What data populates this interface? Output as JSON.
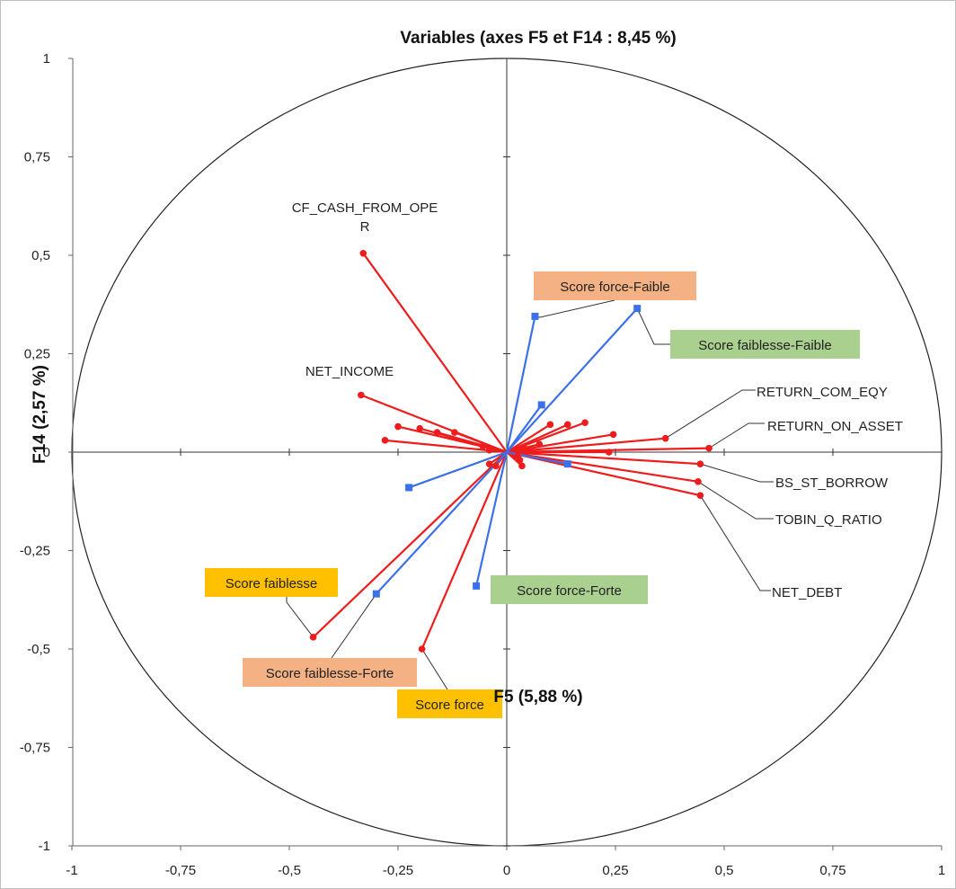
{
  "chart_data": {
    "type": "scatter",
    "title": "Variables (axes F5 et F14 : 8,45 %)",
    "xlabel": "F5 (5,88 %)",
    "ylabel": "F14 (2,57 %)",
    "xlim": [
      -1,
      1
    ],
    "ylim": [
      -1,
      1
    ],
    "x_ticks": [
      "-1",
      "-0,75",
      "-0,5",
      "-0,25",
      "0",
      "0,25",
      "0,5",
      "0,75",
      "1"
    ],
    "y_ticks": [
      "1",
      "0,75",
      "0,5",
      "0,25",
      "0",
      "-0,25",
      "-0,5",
      "-0,75",
      "-1"
    ],
    "correlation_circle": true,
    "colors": {
      "active": "#ee1c1c",
      "supplementary": "#3b70e8",
      "tag_orange": "#f4b183",
      "tag_gold": "#ffc000",
      "tag_green": "#a9d08e"
    },
    "series": [
      {
        "name": "",
        "color": "#ee1c1c",
        "marker": "circle",
        "points": [
          {
            "x": -0.33,
            "y": 0.505
          },
          {
            "x": -0.335,
            "y": 0.145
          },
          {
            "x": -0.25,
            "y": 0.065
          },
          {
            "x": -0.2,
            "y": 0.06
          },
          {
            "x": -0.16,
            "y": 0.05
          },
          {
            "x": -0.12,
            "y": 0.05
          },
          {
            "x": -0.055,
            "y": 0.015
          },
          {
            "x": -0.04,
            "y": 0.005
          },
          {
            "x": -0.28,
            "y": 0.03
          },
          {
            "x": 0.1,
            "y": 0.07
          },
          {
            "x": 0.14,
            "y": 0.07
          },
          {
            "x": 0.18,
            "y": 0.075
          },
          {
            "x": 0.245,
            "y": 0.045
          },
          {
            "x": 0.075,
            "y": 0.02
          },
          {
            "x": 0.04,
            "y": 0.01
          },
          {
            "x": 0.025,
            "y": -0.01
          },
          {
            "x": 0.03,
            "y": -0.02
          },
          {
            "x": 0.035,
            "y": -0.035
          },
          {
            "x": 0.235,
            "y": 0.0
          },
          {
            "x": 0.365,
            "y": 0.035
          },
          {
            "x": 0.465,
            "y": 0.01
          },
          {
            "x": 0.445,
            "y": -0.03
          },
          {
            "x": 0.44,
            "y": -0.075
          },
          {
            "x": 0.445,
            "y": -0.11
          },
          {
            "x": -0.445,
            "y": -0.47
          },
          {
            "x": -0.195,
            "y": -0.5
          },
          {
            "x": -0.04,
            "y": -0.03
          },
          {
            "x": -0.025,
            "y": -0.035
          }
        ]
      },
      {
        "name": "",
        "color": "#3b70e8",
        "marker": "square",
        "points": [
          {
            "x": 0.065,
            "y": 0.345
          },
          {
            "x": 0.3,
            "y": 0.365
          },
          {
            "x": 0.08,
            "y": 0.12
          },
          {
            "x": 0.14,
            "y": -0.03
          },
          {
            "x": -0.225,
            "y": -0.09
          },
          {
            "x": -0.3,
            "y": -0.36
          },
          {
            "x": -0.07,
            "y": -0.34
          }
        ]
      }
    ],
    "plain_labels": [
      {
        "id": "cf-cash",
        "lines": [
          "CF_CASH_FROM_OPE",
          "R"
        ]
      },
      {
        "id": "net-income",
        "lines": [
          "NET_INCOME"
        ]
      },
      {
        "id": "return-com-eqy",
        "lines": [
          "RETURN_COM_EQY"
        ]
      },
      {
        "id": "return-on-asset",
        "lines": [
          "RETURN_ON_ASSET"
        ]
      },
      {
        "id": "bs-st-borrow",
        "lines": [
          "BS_ST_BORROW"
        ]
      },
      {
        "id": "tobin-q-ratio",
        "lines": [
          "TOBIN_Q_RATIO"
        ]
      },
      {
        "id": "net-debt",
        "lines": [
          "NET_DEBT"
        ]
      }
    ],
    "tag_labels": [
      {
        "id": "score-force-faible",
        "text": "Score force-Faible",
        "fill": "#f4b183"
      },
      {
        "id": "score-faiblesse-faible",
        "text": "Score faiblesse-Faible",
        "fill": "#a9d08e"
      },
      {
        "id": "score-faiblesse",
        "text": "Score faiblesse",
        "fill": "#ffc000"
      },
      {
        "id": "score-force-forte",
        "text": "Score force-Forte",
        "fill": "#a9d08e"
      },
      {
        "id": "score-faiblesse-forte",
        "text": "Score faiblesse-Forte",
        "fill": "#f4b183"
      },
      {
        "id": "score-force",
        "text": "Score force",
        "fill": "#ffc000"
      }
    ]
  }
}
